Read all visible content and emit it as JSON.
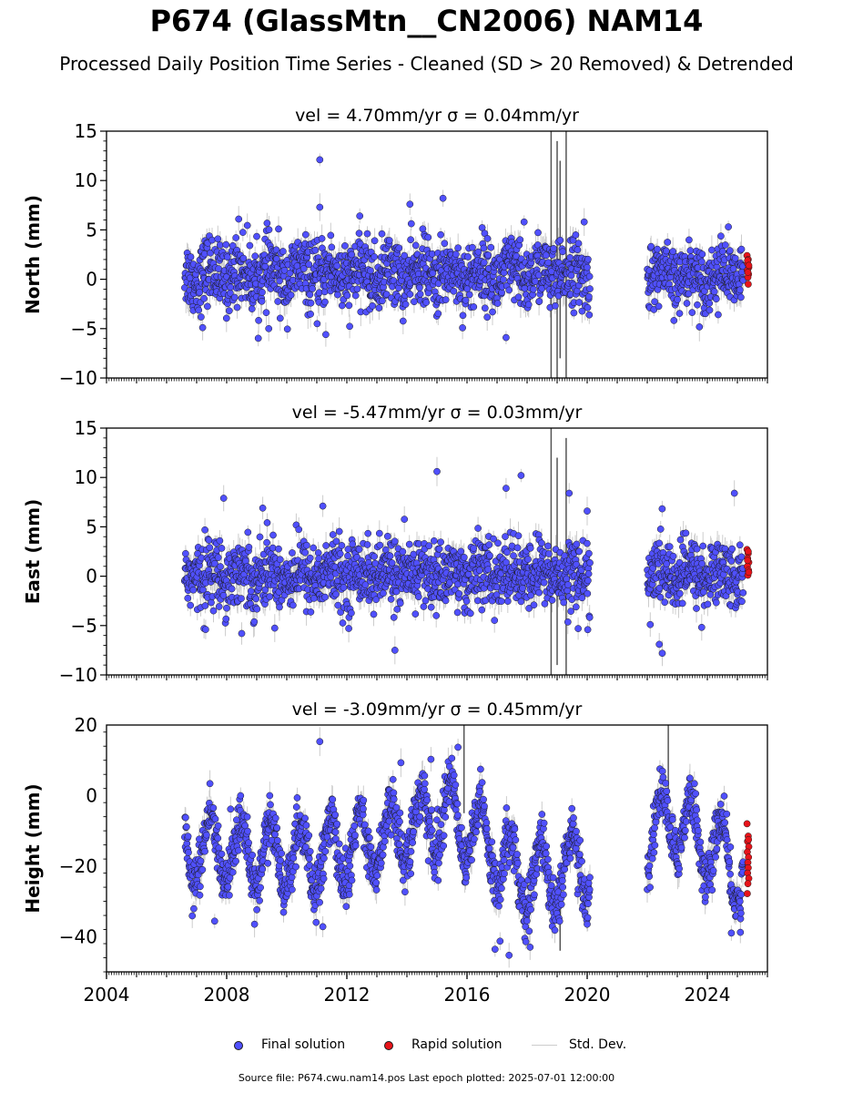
{
  "title": "P674 (GlassMtn__CN2006) NAM14",
  "subtitle": "Processed Daily Position Time Series - Cleaned (SD > 20 Removed) & Detrended",
  "footer": "Source file: P674.cwu.nam14.pos  Last epoch plotted: 2025-07-01 12:00:00",
  "colors": {
    "final": "#5050ff",
    "rapid": "#e8141a",
    "stddev": "#cccccc",
    "marker_edge": "#1a1a1a"
  },
  "legend": {
    "final": "Final solution",
    "rapid": "Rapid solution",
    "stddev": "Std. Dev."
  },
  "chart_data": [
    {
      "type": "scatter",
      "panel": "north",
      "title": "vel = 4.70mm/yr   σ = 0.04mm/yr",
      "ylabel": "North (mm)",
      "xlim": [
        2004.0,
        2026.0
      ],
      "ylim": [
        -10,
        15
      ],
      "yticks": [
        -10,
        -5,
        0,
        5,
        10,
        15
      ],
      "x_ticks": [],
      "grid": false,
      "segments": [
        {
          "x": [
            2006.6,
            2020.1
          ],
          "center": 0.5,
          "spread": 1.7,
          "annual": 0.7
        },
        {
          "x": [
            2022.0,
            2025.2
          ],
          "center": 0.3,
          "spread": 1.5,
          "annual": 0.6
        }
      ],
      "outliers": [
        [
          2011.1,
          12.1
        ],
        [
          2011.1,
          7.3
        ],
        [
          2014.1,
          7.6
        ],
        [
          2015.2,
          8.2
        ],
        [
          2008.4,
          6.1
        ],
        [
          2017.9,
          5.8
        ],
        [
          2019.9,
          5.8
        ],
        [
          2024.7,
          5.3
        ],
        [
          2011.3,
          -5.6
        ],
        [
          2017.3,
          -5.9
        ],
        [
          2009.4,
          -5.0
        ],
        [
          2007.2,
          -4.9
        ]
      ],
      "stddev_spikes": [
        [
          2018.8,
          -10,
          15
        ],
        [
          2019.0,
          -10,
          14
        ],
        [
          2019.3,
          -10,
          15
        ],
        [
          2019.1,
          -8,
          12
        ]
      ],
      "rapid": {
        "x": [
          2025.32,
          2025.36,
          2025.34,
          2025.38,
          2025.33,
          2025.37,
          2025.35,
          2025.36,
          2025.34,
          2025.38,
          2025.35
        ],
        "y": [
          2.4,
          2.0,
          1.6,
          1.2,
          0.9,
          0.5,
          0.2,
          -0.5,
          1.9,
          1.4,
          0.7
        ]
      }
    },
    {
      "type": "scatter",
      "panel": "east",
      "title": "vel = -5.47mm/yr   σ = 0.03mm/yr",
      "ylabel": "East (mm)",
      "xlim": [
        2004.0,
        2026.0
      ],
      "ylim": [
        -10,
        15
      ],
      "yticks": [
        -10,
        -5,
        0,
        5,
        10,
        15
      ],
      "x_ticks": [],
      "grid": false,
      "segments": [
        {
          "x": [
            2006.6,
            2020.1
          ],
          "center": 0.2,
          "spread": 1.7,
          "annual": 0.5
        },
        {
          "x": [
            2022.0,
            2025.2
          ],
          "center": 0.2,
          "spread": 1.6,
          "annual": 0.6
        }
      ],
      "outliers": [
        [
          2015.0,
          10.6
        ],
        [
          2017.3,
          8.9
        ],
        [
          2017.8,
          10.2
        ],
        [
          2019.4,
          8.4
        ],
        [
          2024.9,
          8.4
        ],
        [
          2007.9,
          7.9
        ],
        [
          2009.2,
          6.9
        ],
        [
          2011.2,
          7.1
        ],
        [
          2020.0,
          6.6
        ],
        [
          2013.6,
          -7.5
        ],
        [
          2022.4,
          -6.9
        ],
        [
          2022.5,
          -7.8
        ],
        [
          2008.5,
          -5.8
        ],
        [
          2007.3,
          -5.4
        ],
        [
          2019.7,
          -5.3
        ],
        [
          2022.1,
          -4.9
        ]
      ],
      "stddev_spikes": [
        [
          2018.8,
          -10,
          15
        ],
        [
          2019.0,
          -9,
          12
        ],
        [
          2019.3,
          -10,
          14
        ]
      ],
      "rapid": {
        "x": [
          2025.32,
          2025.36,
          2025.34,
          2025.38,
          2025.33,
          2025.37,
          2025.35,
          2025.36,
          2025.34,
          2025.38
        ],
        "y": [
          2.7,
          2.3,
          1.8,
          1.4,
          1.0,
          0.6,
          0.1,
          2.5,
          1.6,
          0.4
        ]
      }
    },
    {
      "type": "scatter",
      "panel": "height",
      "title": "vel = -3.09mm/yr   σ = 0.45mm/yr",
      "ylabel": "Height (mm)",
      "xlim": [
        2004.0,
        2026.0
      ],
      "ylim": [
        -50,
        20
      ],
      "yticks": [
        -40,
        -20,
        0,
        20
      ],
      "x_ticks": [
        "2004",
        "2008",
        "2012",
        "2016",
        "2020",
        "2024"
      ],
      "x_tick_values": [
        2004,
        2008,
        2012,
        2016,
        2020,
        2024
      ],
      "grid": false,
      "segments": [
        {
          "x": [
            2006.6,
            2020.1
          ],
          "center": -13,
          "spread": 3.8,
          "annual": 9.5,
          "trend_breaks": [
            [
              2006.6,
              -15
            ],
            [
              2011.0,
              -18
            ],
            [
              2015.5,
              -5
            ],
            [
              2018.0,
              -24
            ],
            [
              2020.1,
              -19
            ]
          ]
        },
        {
          "x": [
            2022.0,
            2025.2
          ],
          "center": -11,
          "spread": 3.5,
          "annual": 10,
          "trend_breaks": [
            [
              2022.0,
              -13
            ],
            [
              2022.8,
              -6
            ],
            [
              2025.2,
              -22
            ]
          ]
        }
      ],
      "outliers": [
        [
          2011.1,
          15.3
        ],
        [
          2015.7,
          13.7
        ],
        [
          2014.8,
          10.3
        ],
        [
          2013.8,
          9.3
        ],
        [
          2011.2,
          -37.2
        ],
        [
          2017.4,
          -45.3
        ],
        [
          2017.1,
          -41.3
        ],
        [
          2007.6,
          -35.6
        ],
        [
          2020.0,
          -36.5
        ],
        [
          2024.8,
          -39.0
        ],
        [
          2025.1,
          -38.8
        ],
        [
          2018.1,
          -43.0
        ]
      ],
      "stddev_spikes": [
        [
          2015.9,
          -5,
          20
        ],
        [
          2022.7,
          0,
          20
        ],
        [
          2019.1,
          -44,
          -20
        ]
      ],
      "rapid": {
        "x": [
          2025.32,
          2025.36,
          2025.34,
          2025.38,
          2025.33,
          2025.37,
          2025.35,
          2025.36,
          2025.34,
          2025.38,
          2025.35,
          2025.33,
          2025.37
        ],
        "y": [
          -8,
          -11.5,
          -13,
          -14.5,
          -16,
          -17.5,
          -19,
          -20.5,
          -22,
          -23.5,
          -25,
          -27.8,
          -12.5
        ]
      }
    }
  ]
}
